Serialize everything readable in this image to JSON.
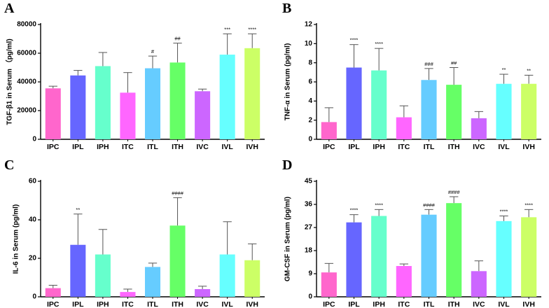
{
  "figure": {
    "panel_count": 4
  },
  "colors": {
    "IPC": "#ff66cc",
    "IPL": "#6666ff",
    "IPH": "#66ffcc",
    "ITC": "#ff66ff",
    "ITL": "#66ccff",
    "ITH": "#66ff66",
    "IVC": "#cc66ff",
    "IVL": "#66ffff",
    "IVH": "#ccff66",
    "axis": "#000000",
    "error_bar": "#555555"
  },
  "chart_data": [
    {
      "letter": "A",
      "type": "bar",
      "title": "",
      "xlabel": "",
      "ylabel": "TGF-β1 in Serum （pg/ml)",
      "categories": [
        "IPC",
        "IPL",
        "IPH",
        "ITC",
        "ITL",
        "ITH",
        "IVC",
        "IVL",
        "IVH"
      ],
      "values": [
        35500,
        44500,
        51000,
        32500,
        49500,
        53500,
        33500,
        59000,
        63500
      ],
      "errors": [
        1500,
        3500,
        9500,
        14000,
        8500,
        13500,
        1500,
        14500,
        10000
      ],
      "annotations": [
        "",
        "",
        "",
        "",
        "#",
        "##",
        "",
        "***",
        "****"
      ],
      "ylim": [
        0,
        80000
      ],
      "yticks": [
        0,
        20000,
        40000,
        60000,
        80000
      ],
      "ytick_labels": [
        "0",
        "20000",
        "40000",
        "60000",
        "80000"
      ]
    },
    {
      "letter": "B",
      "type": "bar",
      "title": "",
      "xlabel": "",
      "ylabel": "TNF-α in Serum (pg/ml)",
      "categories": [
        "IPC",
        "IPL",
        "IPH",
        "ITC",
        "ITL",
        "ITH",
        "IVC",
        "IVL",
        "IVH"
      ],
      "values": [
        1.8,
        7.5,
        7.2,
        2.3,
        6.2,
        5.7,
        2.2,
        5.8,
        5.8
      ],
      "errors": [
        1.5,
        2.4,
        2.3,
        1.2,
        1.2,
        1.8,
        0.7,
        1.0,
        0.9
      ],
      "annotations": [
        "",
        "****",
        "****",
        "",
        "###",
        "##",
        "",
        "**",
        "**"
      ],
      "ylim": [
        0,
        12
      ],
      "yticks": [
        0,
        2,
        4,
        6,
        8,
        10,
        12
      ],
      "ytick_labels": [
        "0",
        "2",
        "4",
        "6",
        "8",
        "10",
        "12"
      ]
    },
    {
      "letter": "C",
      "type": "bar",
      "title": "",
      "xlabel": "",
      "ylabel": "IL-6 in Serum (pg/ml)",
      "categories": [
        "IPC",
        "IPL",
        "IPH",
        "ITC",
        "ITL",
        "ITH",
        "IVC",
        "IVL",
        "IVH"
      ],
      "values": [
        4.5,
        27,
        22,
        2.5,
        15.5,
        37,
        4,
        22,
        19
      ],
      "errors": [
        1.5,
        16,
        13,
        1.5,
        2,
        14.5,
        1.5,
        17,
        8.5
      ],
      "annotations": [
        "",
        "**",
        "",
        "",
        "",
        "####",
        "",
        "",
        ""
      ],
      "ylim": [
        0,
        60
      ],
      "yticks": [
        0,
        20,
        40,
        60
      ],
      "ytick_labels": [
        "0",
        "20",
        "40",
        "60"
      ]
    },
    {
      "letter": "D",
      "type": "bar",
      "title": "",
      "xlabel": "",
      "ylabel": "GM-CSF in Serum (pg/ml)",
      "categories": [
        "IPC",
        "IPL",
        "IPH",
        "ITC",
        "ITL",
        "ITH",
        "IVC",
        "IVL",
        "IVH"
      ],
      "values": [
        9.5,
        29,
        31.5,
        12,
        32,
        36.5,
        10,
        29.5,
        31
      ],
      "errors": [
        3.5,
        3,
        2.5,
        0.8,
        2,
        2.5,
        4,
        2,
        3
      ],
      "annotations": [
        "",
        "****",
        "****",
        "",
        "####",
        "####",
        "",
        "****",
        "****"
      ],
      "ylim": [
        0,
        45
      ],
      "yticks": [
        0,
        9,
        18,
        27,
        36,
        45
      ],
      "ytick_labels": [
        "0",
        "9",
        "18",
        "27",
        "36",
        "45"
      ]
    }
  ]
}
